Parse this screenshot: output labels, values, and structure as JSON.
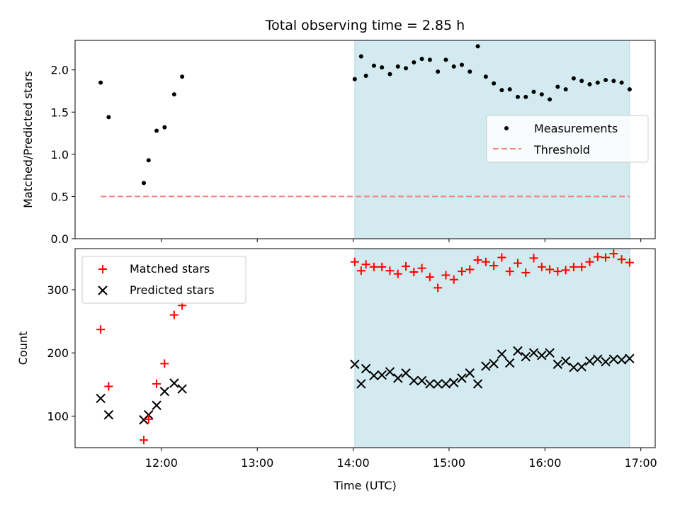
{
  "title": "Total observing time = 2.85 h",
  "chart_data": [
    {
      "type": "scatter",
      "panel": "top",
      "ylabel": "Matched/Predicted stars",
      "ylim": [
        0,
        2.35
      ],
      "yticks": [
        "0.0",
        "0.5",
        "1.0",
        "1.5",
        "2.0"
      ],
      "xlim": [
        11.1,
        17.15
      ],
      "shaded_interval": [
        "14:01",
        "16:53"
      ],
      "shade_color": "#d3eaf0",
      "threshold": {
        "name": "Threshold",
        "value": 0.5,
        "x_start": "11:22",
        "x_end": "16:53",
        "color": "#f08080"
      },
      "measurements": {
        "name": "Measurements",
        "color": "#000000",
        "x": [
          "11:22",
          "11:27",
          "11:49",
          "11:52",
          "11:57",
          "12:02",
          "12:08",
          "12:13",
          "14:01",
          "14:05",
          "14:08",
          "14:13",
          "14:18",
          "14:23",
          "14:28",
          "14:33",
          "14:38",
          "14:43",
          "14:48",
          "14:53",
          "14:58",
          "15:03",
          "15:08",
          "15:13",
          "15:18",
          "15:23",
          "15:28",
          "15:33",
          "15:38",
          "15:43",
          "15:48",
          "15:53",
          "15:58",
          "16:03",
          "16:08",
          "16:13",
          "16:18",
          "16:23",
          "16:28",
          "16:33",
          "16:38",
          "16:43",
          "16:48",
          "16:53"
        ],
        "y": [
          1.85,
          1.44,
          0.66,
          0.93,
          1.28,
          1.32,
          1.71,
          1.92,
          1.89,
          2.16,
          1.93,
          2.05,
          2.03,
          1.95,
          2.04,
          2.02,
          2.09,
          2.13,
          2.12,
          1.98,
          2.12,
          2.04,
          2.06,
          1.98,
          2.28,
          1.92,
          1.84,
          1.76,
          1.77,
          1.68,
          1.68,
          1.74,
          1.71,
          1.65,
          1.8,
          1.77,
          1.9,
          1.87,
          1.83,
          1.85,
          1.88,
          1.87,
          1.85,
          1.77
        ]
      },
      "legend": {
        "position": "center-right",
        "entries": [
          "Measurements",
          "Threshold"
        ]
      }
    },
    {
      "type": "scatter",
      "panel": "bottom",
      "xlabel": "Time (UTC)",
      "ylabel": "Count",
      "ylim": [
        50,
        365
      ],
      "yticks": [
        "100",
        "200",
        "300"
      ],
      "xticks": [
        "12:00",
        "13:00",
        "14:00",
        "15:00",
        "16:00",
        "17:00"
      ],
      "xlim": [
        11.1,
        17.15
      ],
      "shaded_interval": [
        "14:01",
        "16:53"
      ],
      "series": [
        {
          "name": "Matched stars",
          "marker": "+",
          "color": "#ff0000",
          "x": [
            "11:22",
            "11:27",
            "11:49",
            "11:52",
            "11:57",
            "12:02",
            "12:08",
            "12:13",
            "14:01",
            "14:05",
            "14:08",
            "14:13",
            "14:18",
            "14:23",
            "14:28",
            "14:33",
            "14:38",
            "14:43",
            "14:48",
            "14:53",
            "14:58",
            "15:03",
            "15:08",
            "15:13",
            "15:18",
            "15:23",
            "15:28",
            "15:33",
            "15:38",
            "15:43",
            "15:48",
            "15:53",
            "15:58",
            "16:03",
            "16:08",
            "16:13",
            "16:18",
            "16:23",
            "16:28",
            "16:33",
            "16:38",
            "16:43",
            "16:48",
            "16:53"
          ],
          "y": [
            237,
            147,
            62,
            95,
            151,
            183,
            260,
            275,
            344,
            330,
            340,
            336,
            336,
            330,
            325,
            337,
            328,
            334,
            320,
            303,
            323,
            316,
            329,
            332,
            347,
            344,
            338,
            351,
            329,
            342,
            327,
            350,
            336,
            332,
            329,
            331,
            336,
            336,
            344,
            352,
            351,
            357,
            348,
            343
          ]
        },
        {
          "name": "Predicted stars",
          "marker": "x",
          "color": "#000000",
          "x": [
            "11:22",
            "11:27",
            "11:49",
            "11:52",
            "11:57",
            "12:02",
            "12:08",
            "12:13",
            "14:01",
            "14:05",
            "14:08",
            "14:13",
            "14:18",
            "14:23",
            "14:28",
            "14:33",
            "14:38",
            "14:43",
            "14:48",
            "14:53",
            "14:58",
            "15:03",
            "15:08",
            "15:13",
            "15:18",
            "15:23",
            "15:28",
            "15:33",
            "15:38",
            "15:43",
            "15:48",
            "15:53",
            "15:58",
            "16:03",
            "16:08",
            "16:13",
            "16:18",
            "16:23",
            "16:28",
            "16:33",
            "16:38",
            "16:43",
            "16:48",
            "16:53"
          ],
          "y": [
            128,
            102,
            94,
            102,
            117,
            139,
            152,
            143,
            182,
            151,
            175,
            164,
            165,
            170,
            160,
            168,
            156,
            156,
            151,
            151,
            151,
            153,
            160,
            168,
            151,
            179,
            183,
            198,
            184,
            203,
            194,
            200,
            196,
            200,
            182,
            187,
            177,
            178,
            187,
            190,
            186,
            190,
            189,
            191
          ]
        }
      ],
      "legend": {
        "position": "upper-left",
        "entries": [
          "Matched stars",
          "Predicted stars"
        ]
      }
    }
  ]
}
